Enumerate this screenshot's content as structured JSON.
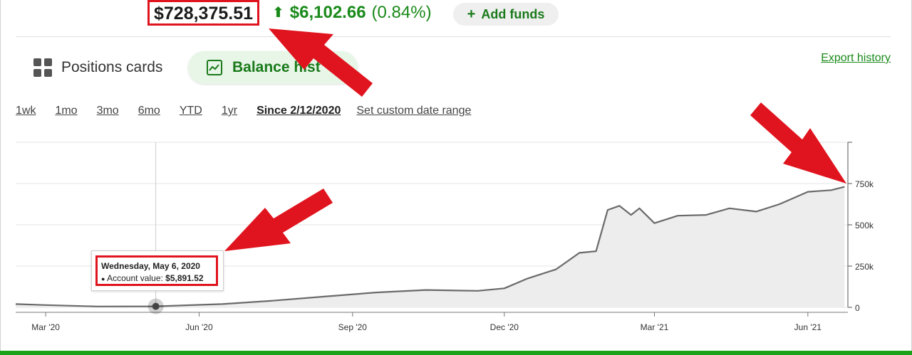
{
  "header": {
    "balance": "$728,375.51",
    "change_amount": "$6,102.66",
    "change_percent": "(0.84%)",
    "add_funds_label": "Add funds",
    "arrow_icon": "arrow-up-icon"
  },
  "view_tabs": {
    "positions_cards_label": "Positions cards",
    "balance_history_label": "Balance hist"
  },
  "export_history_label": "Export history",
  "ranges": {
    "items": [
      "1wk",
      "1mo",
      "3mo",
      "6mo",
      "YTD",
      "1yr"
    ],
    "active": "Since 2/12/2020",
    "custom": "Set custom date range"
  },
  "tooltip": {
    "date": "Wednesday, May 6, 2020",
    "label": "Account value:",
    "value": "$5,891.52"
  },
  "colors": {
    "accent_green": "#1a8a1a",
    "annotation_red": "#e0141e",
    "line_gray": "#6a6a6a",
    "fill_gray": "#ededed"
  },
  "chart_data": {
    "type": "area",
    "title": "",
    "xlabel": "",
    "ylabel": "",
    "x_ticks": [
      "Mar '20",
      "Jun '20",
      "Sep '20",
      "Dec '20",
      "Mar '21",
      "Jun '21"
    ],
    "y_ticks": [
      "0",
      "250k",
      "500k",
      "750k"
    ],
    "ylim": [
      0,
      1000000
    ],
    "grid": true,
    "series": [
      {
        "x": [
          "2020-02-12",
          "2020-03-01",
          "2020-04-01",
          "2020-05-06",
          "2020-06-15",
          "2020-07-15",
          "2020-08-15",
          "2020-09-15",
          "2020-10-15",
          "2020-11-15",
          "2020-12-01",
          "2020-12-15",
          "2021-01-01",
          "2021-01-15",
          "2021-01-25",
          "2021-02-01",
          "2021-02-08",
          "2021-02-15",
          "2021-02-20",
          "2021-03-01",
          "2021-03-15",
          "2021-04-01",
          "2021-04-15",
          "2021-05-01",
          "2021-05-15",
          "2021-06-01",
          "2021-06-15",
          "2021-06-23"
        ],
        "values": [
          20000,
          14000,
          5000,
          5892,
          20000,
          40000,
          65000,
          90000,
          105000,
          100000,
          115000,
          175000,
          230000,
          330000,
          340000,
          590000,
          615000,
          560000,
          600000,
          510000,
          555000,
          560000,
          600000,
          580000,
          625000,
          700000,
          710000,
          730000
        ]
      }
    ]
  }
}
